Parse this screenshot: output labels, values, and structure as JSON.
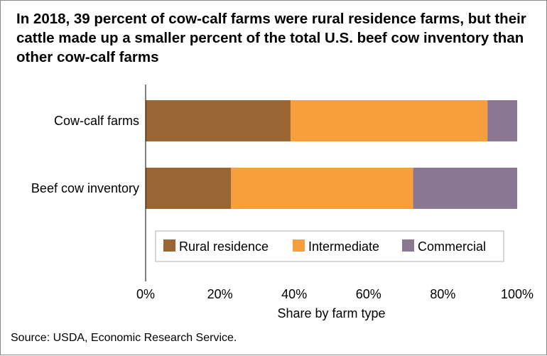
{
  "chart_data": {
    "type": "bar",
    "orientation": "horizontal",
    "stacked": true,
    "title": "In 2018, 39 percent of cow-calf farms were rural residence farms, but their cattle made up a smaller percent of the total U.S. beef cow inventory than other cow-calf farms",
    "categories": [
      "Cow-calf farms",
      "Beef cow inventory"
    ],
    "series": [
      {
        "name": "Rural residence",
        "color": "#996633",
        "values": [
          39,
          23
        ]
      },
      {
        "name": "Intermediate",
        "color": "#F79E3D",
        "values": [
          53,
          49
        ]
      },
      {
        "name": "Commercial",
        "color": "#8A7791",
        "values": [
          8,
          28
        ]
      }
    ],
    "xlabel": "Share by farm type",
    "xlim": [
      0,
      100
    ],
    "xticks": [
      "0%",
      "20%",
      "40%",
      "60%",
      "80%",
      "100%"
    ],
    "grid": false,
    "legend_position": "bottom-inside"
  },
  "source": "Source: USDA, Economic Research Service."
}
